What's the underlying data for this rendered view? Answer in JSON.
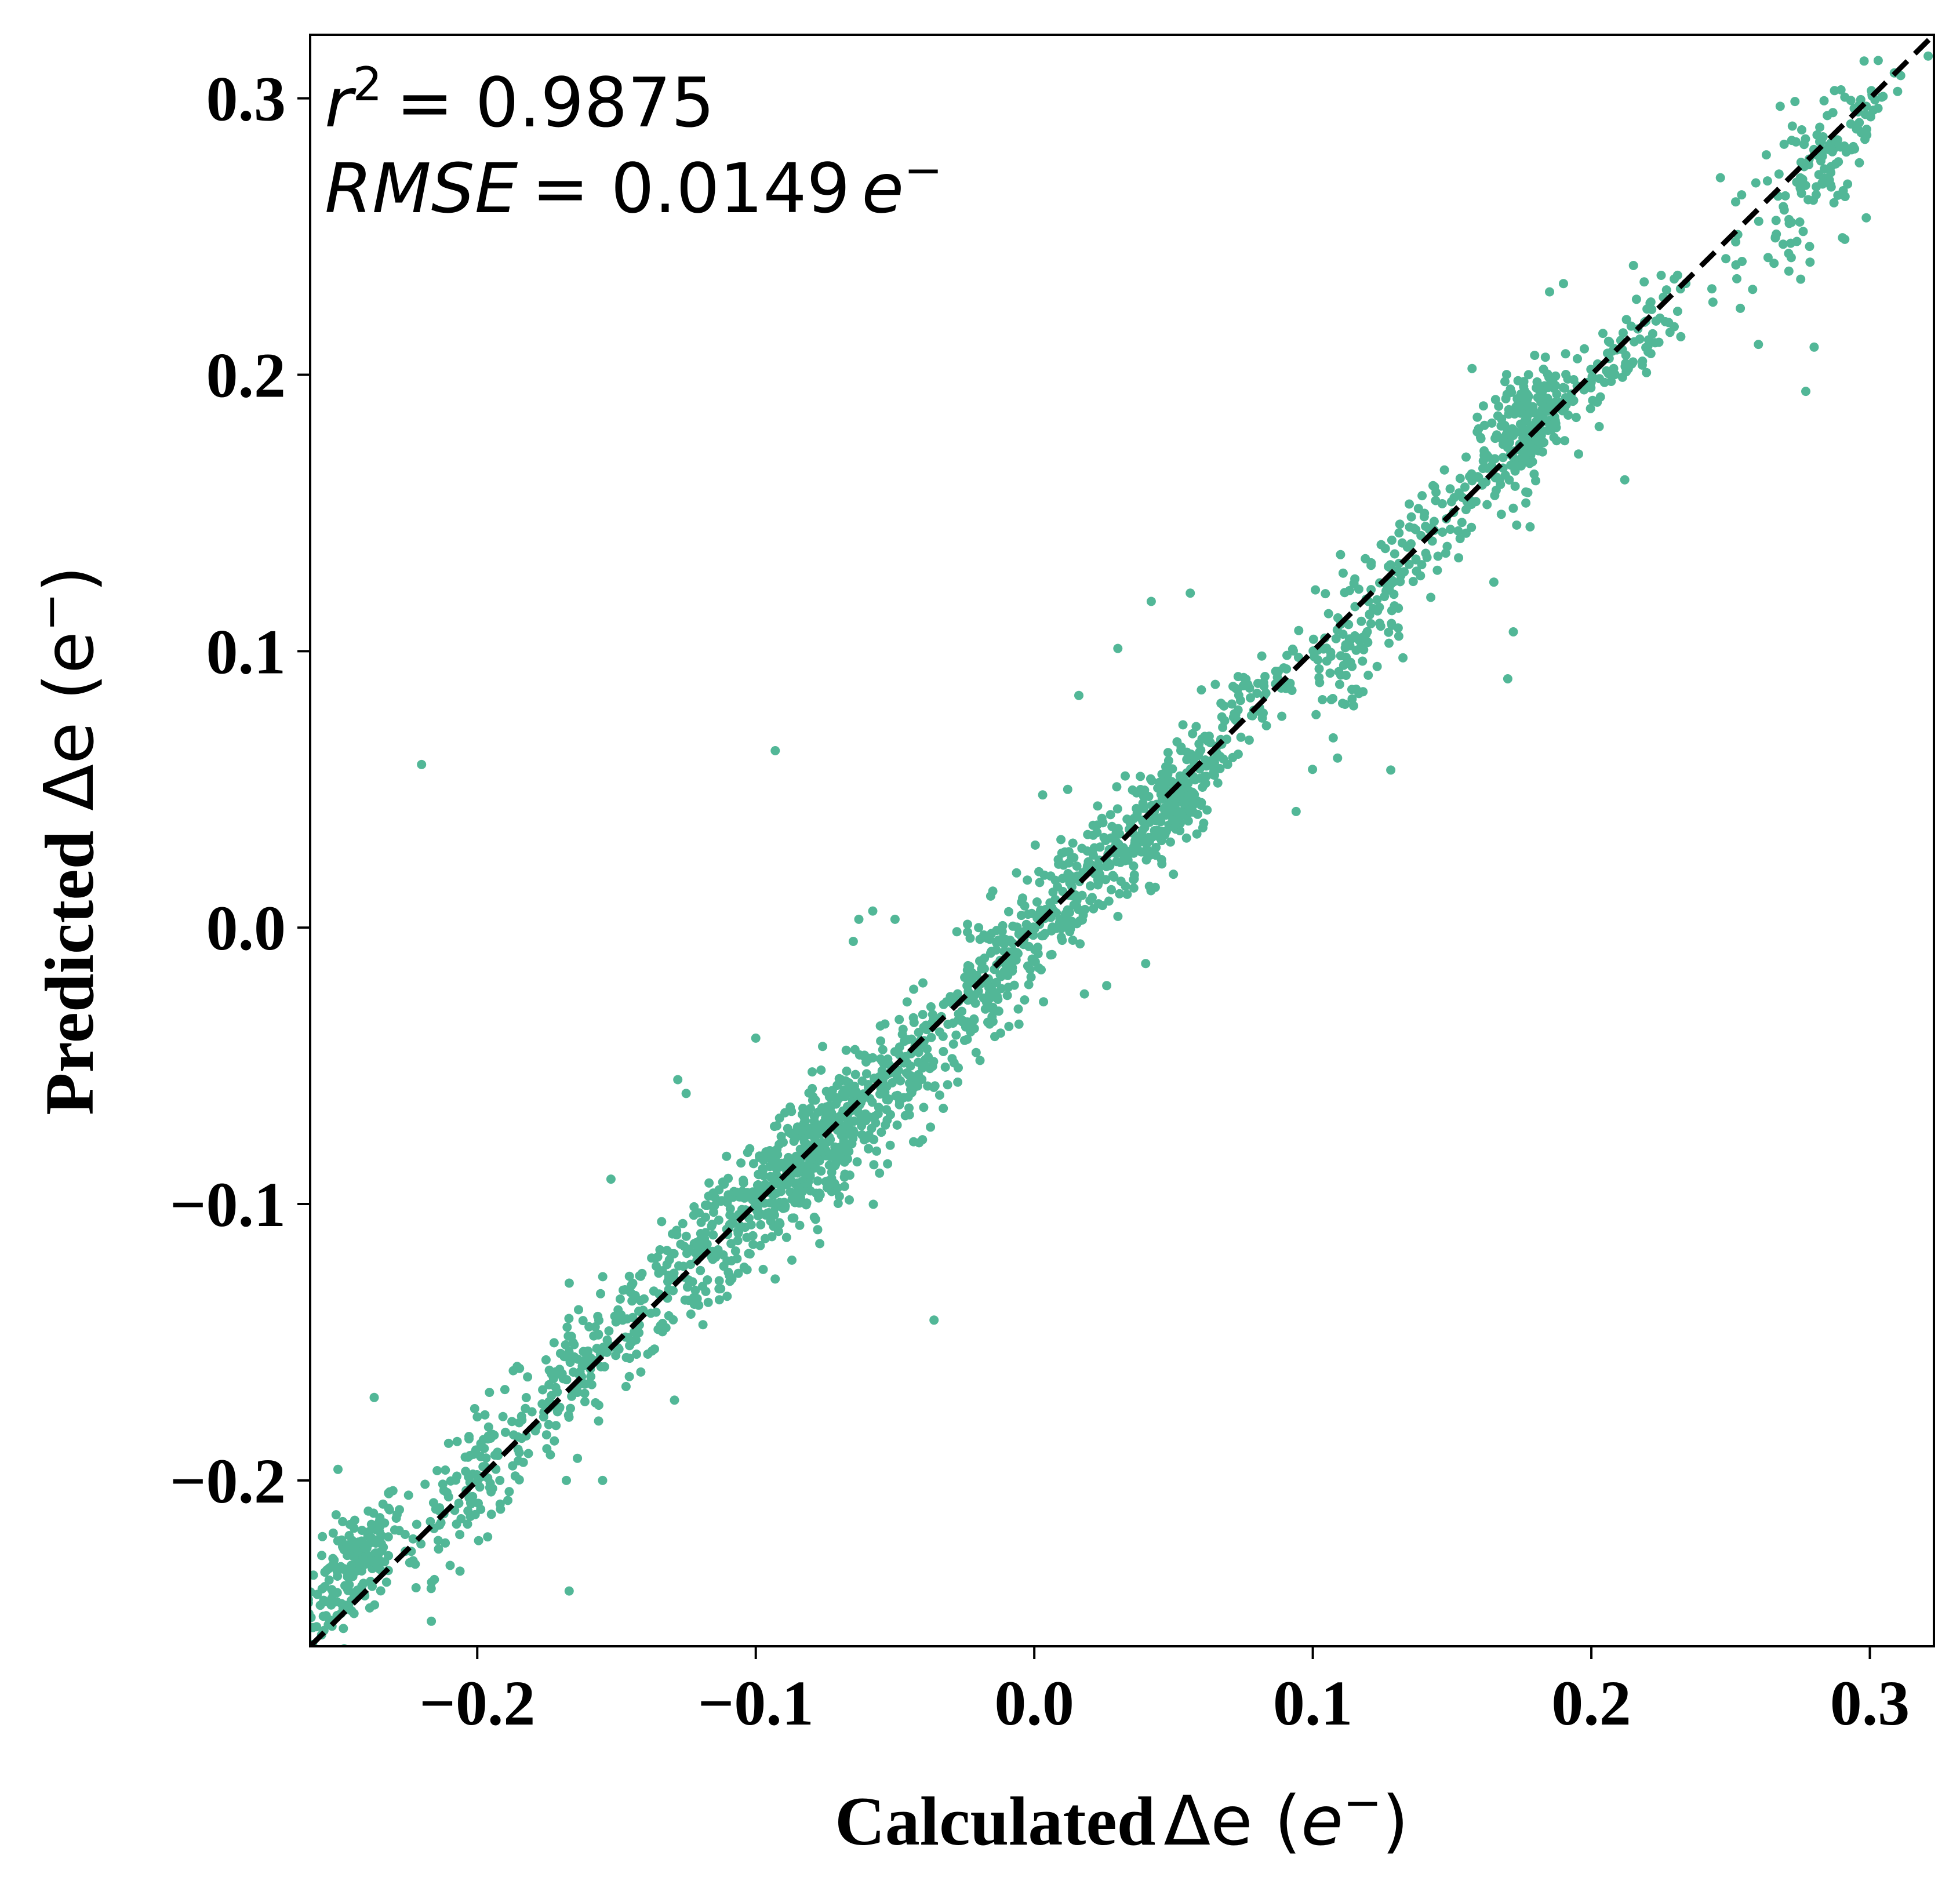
{
  "chart_data": {
    "type": "scatter",
    "xlabel_prefix": "Calculated",
    "xlabel_symbol": "Δe",
    "xlabel_unit": "e",
    "ylabel_prefix": "Predicted",
    "ylabel_symbol": "Δe",
    "ylabel_unit": "e",
    "xlim": [
      -0.26,
      0.323
    ],
    "ylim": [
      -0.26,
      0.323
    ],
    "x_ticks": [
      -0.2,
      -0.1,
      0.0,
      0.1,
      0.2,
      0.3
    ],
    "x_tick_labels": [
      "−0.2",
      "−0.1",
      "0.0",
      "0.1",
      "0.2",
      "0.3"
    ],
    "y_ticks": [
      -0.2,
      -0.1,
      0.0,
      0.1,
      0.2,
      0.3
    ],
    "y_tick_labels": [
      "−0.2",
      "−0.1",
      "0.0",
      "0.1",
      "0.2",
      "0.3"
    ],
    "grid": false,
    "annotations": {
      "r2_symbol": "r",
      "r2_exp": "2",
      "r2_value": "= 0.9875",
      "rmse_symbol": "RMSE",
      "rmse_value": "= 0.0149",
      "rmse_unit": "e"
    },
    "reference_line": {
      "style": "dashed",
      "color": "#000000",
      "slope": 1,
      "intercept": 0
    },
    "point_color": "#52b797",
    "clusters": [
      [
        -0.245,
        -0.232,
        180,
        0.009,
        0.01
      ],
      [
        -0.2,
        -0.198,
        140,
        0.016,
        0.011
      ],
      [
        -0.16,
        -0.158,
        140,
        0.016,
        0.011
      ],
      [
        -0.12,
        -0.118,
        150,
        0.016,
        0.011
      ],
      [
        -0.09,
        -0.09,
        260,
        0.016,
        0.012
      ],
      [
        -0.072,
        -0.075,
        200,
        0.011,
        0.011
      ],
      [
        -0.04,
        -0.048,
        170,
        0.014,
        0.012
      ],
      [
        -0.01,
        -0.012,
        150,
        0.012,
        0.011
      ],
      [
        0.015,
        0.016,
        140,
        0.011,
        0.01
      ],
      [
        0.047,
        0.042,
        230,
        0.01,
        0.01
      ],
      [
        0.08,
        0.083,
        90,
        0.014,
        0.008
      ],
      [
        0.115,
        0.105,
        100,
        0.01,
        0.014
      ],
      [
        0.14,
        0.142,
        90,
        0.012,
        0.009
      ],
      [
        0.175,
        0.18,
        220,
        0.009,
        0.011
      ],
      [
        0.21,
        0.206,
        90,
        0.014,
        0.008
      ],
      [
        0.27,
        0.26,
        60,
        0.012,
        0.018
      ],
      [
        0.29,
        0.288,
        90,
        0.012,
        0.008
      ]
    ],
    "outliers": [
      [
        -0.22,
        0.059
      ],
      [
        -0.093,
        0.064
      ],
      [
        -0.167,
        -0.24
      ],
      [
        -0.036,
        -0.142
      ],
      [
        -0.063,
        0.003
      ],
      [
        -0.058,
        0.006
      ],
      [
        -0.065,
        -0.005
      ],
      [
        -0.04,
        -0.02
      ],
      [
        -0.02,
        0.0
      ],
      [
        0.042,
        0.118
      ],
      [
        0.056,
        0.121
      ],
      [
        0.03,
        0.101
      ],
      [
        0.016,
        0.084
      ],
      [
        0.094,
        0.042
      ],
      [
        0.04,
        -0.013
      ],
      [
        0.018,
        -0.024
      ],
      [
        0.026,
        -0.021
      ],
      [
        0.17,
        0.09
      ],
      [
        0.172,
        0.107
      ],
      [
        0.165,
        0.125
      ],
      [
        0.178,
        0.145
      ],
      [
        0.212,
        0.162
      ],
      [
        0.26,
        0.211
      ],
      [
        0.277,
        0.194
      ],
      [
        0.28,
        0.21
      ],
      [
        0.292,
        0.269
      ],
      [
        0.291,
        0.249
      ],
      [
        0.185,
        0.23
      ],
      [
        0.19,
        0.233
      ],
      [
        0.128,
        0.057
      ],
      [
        -0.152,
        -0.091
      ],
      [
        -0.128,
        -0.055
      ],
      [
        -0.2,
        -0.177
      ],
      [
        -0.237,
        -0.17
      ],
      [
        -0.125,
        -0.06
      ],
      [
        -0.076,
        -0.043
      ],
      [
        -0.1,
        -0.04
      ],
      [
        -0.155,
        -0.2
      ],
      [
        -0.168,
        -0.2
      ],
      [
        -0.25,
        -0.196
      ],
      [
        0.06,
        0.086
      ],
      [
        0.065,
        0.088
      ],
      [
        0.012,
        0.05
      ],
      [
        0.003,
        0.048
      ],
      [
        -0.05,
        0.003
      ]
    ]
  }
}
